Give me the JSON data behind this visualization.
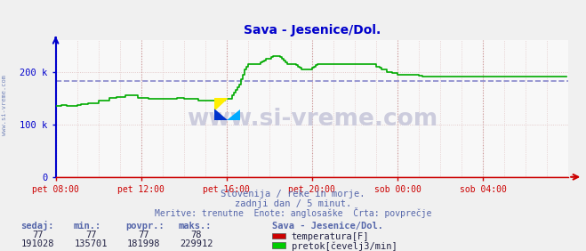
{
  "title": "Sava - Jesenice/Dol.",
  "title_color": "#0000cc",
  "bg_color": "#f0f0f0",
  "plot_bg_color": "#f8f8f8",
  "grid_minor_color": "#ddbbbb",
  "grid_major_color": "#cc9999",
  "axis_spine_color": "#0000cc",
  "bottom_spine_color": "#cc0000",
  "tick_color": "#0000cc",
  "xlabel_color": "#4455aa",
  "text_color": "#5566aa",
  "dashed_line_value": 181998,
  "ylabel_ticks": [
    0,
    100000,
    200000
  ],
  "ylabel_tick_labels": [
    "0",
    "100 k",
    "200 k"
  ],
  "x_tick_labels": [
    "pet 08:00",
    "pet 12:00",
    "pet 16:00",
    "pet 20:00",
    "sob 00:00",
    "sob 04:00"
  ],
  "x_tick_positions": [
    0,
    48,
    96,
    144,
    192,
    240
  ],
  "x_max": 288,
  "watermark_text": "www.si-vreme.com",
  "watermark_color": "#ccccdd",
  "sub_text1": "Slovenija / reke in morje.",
  "sub_text2": "zadnji dan / 5 minut.",
  "sub_text3": "Meritve: trenutne  Enote: anglosaške  Črta: povprečje",
  "legend_title": "Sava - Jesenice/Dol.",
  "legend_items": [
    {
      "label": "temperatura[F]",
      "color": "#cc0000"
    },
    {
      "label": "pretok[čevelj3/min]",
      "color": "#00cc00"
    }
  ],
  "table_headers": [
    "sedaj:",
    "min.:",
    "povpr.:",
    "maks.:"
  ],
  "table_rows": [
    [
      "77",
      "77",
      "77",
      "78"
    ],
    [
      "191028",
      "135701",
      "181998",
      "229912"
    ]
  ],
  "flow_data_raw": [
    135701,
    135701,
    135701,
    136000,
    136000,
    136000,
    135701,
    135701,
    135701,
    135701,
    135701,
    135701,
    136000,
    136000,
    138000,
    138000,
    138000,
    138000,
    140000,
    140000,
    140000,
    140000,
    140000,
    140000,
    145000,
    145000,
    145000,
    145000,
    145000,
    145000,
    150000,
    150000,
    150000,
    150000,
    152000,
    152000,
    152000,
    152000,
    152000,
    155000,
    155000,
    155000,
    155000,
    155000,
    155000,
    155000,
    150000,
    150000,
    150000,
    150000,
    150000,
    150000,
    148000,
    148000,
    148000,
    148000,
    148000,
    148000,
    148000,
    148000,
    148000,
    148000,
    148000,
    148000,
    148000,
    148000,
    148000,
    148000,
    150000,
    150000,
    150000,
    150000,
    148000,
    148000,
    148000,
    148000,
    148000,
    148000,
    148000,
    148000,
    145000,
    145000,
    145000,
    145000,
    145000,
    145000,
    145000,
    145000,
    145000,
    145000,
    145000,
    145000,
    145000,
    145000,
    145000,
    148000,
    148000,
    148000,
    148000,
    155000,
    160000,
    165000,
    170000,
    175000,
    185000,
    195000,
    205000,
    210000,
    215000,
    215000,
    215000,
    215000,
    215000,
    215000,
    215000,
    218000,
    220000,
    222000,
    225000,
    225000,
    225000,
    228000,
    229912,
    229912,
    229912,
    229912,
    228000,
    225000,
    222000,
    218000,
    215000,
    215000,
    215000,
    215000,
    215000,
    212000,
    210000,
    208000,
    205000,
    205000,
    205000,
    205000,
    205000,
    205000,
    208000,
    210000,
    212000,
    215000,
    215000,
    215000,
    215000,
    215000,
    215000,
    215000,
    215000,
    215000,
    215000,
    215000,
    215000,
    215000,
    215000,
    215000,
    215000,
    215000,
    215000,
    215000,
    215000,
    215000,
    215000,
    215000,
    215000,
    215000,
    215000,
    215000,
    215000,
    215000,
    215000,
    215000,
    215000,
    215000,
    210000,
    210000,
    208000,
    205000,
    205000,
    205000,
    200000,
    200000,
    200000,
    198000,
    198000,
    198000,
    195000,
    195000,
    195000,
    195000,
    195000,
    195000,
    195000,
    195000,
    195000,
    195000,
    195000,
    195000,
    193000,
    192000,
    191028,
    191028,
    191028,
    191028,
    191028,
    191028,
    191028,
    191028,
    191028,
    191028,
    191028,
    191028,
    191028,
    191028,
    191028,
    191028,
    191028,
    191028,
    191028,
    191028,
    191028,
    191028,
    191028,
    191028,
    191028,
    191028,
    191028,
    191028,
    191028,
    191028,
    191028,
    191028,
    191028,
    191028,
    191028,
    191028,
    191028,
    191028,
    191028,
    191028,
    191028,
    191028,
    191028,
    191028,
    191028,
    191028,
    191028,
    191028,
    191028,
    191028,
    191028,
    191028,
    191028,
    191028,
    191028,
    191028,
    191028,
    191028,
    191028,
    191028,
    191028,
    191028,
    191028,
    191028,
    191028,
    191028,
    191028,
    191028,
    191028,
    191028,
    191028,
    191028,
    191028,
    191028,
    191028,
    191028,
    191028,
    191028,
    191028,
    191028,
    191028,
    191028
  ],
  "flow_color": "#00aa00",
  "temp_color": "#cc0000",
  "avg_line_color": "#8888cc",
  "ymax": 260000,
  "ymin": 0,
  "left_watermark": "www.si-vreme.com"
}
